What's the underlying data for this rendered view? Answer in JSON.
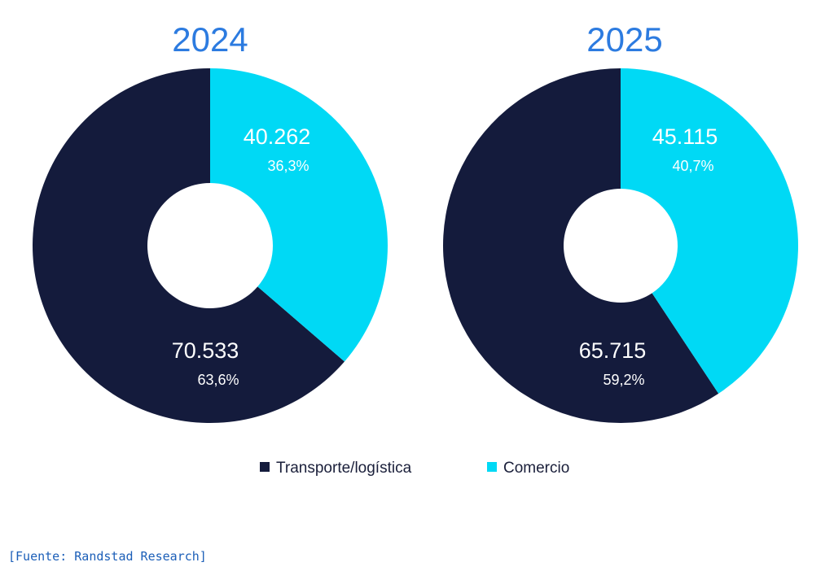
{
  "chart_data": [
    {
      "type": "pie",
      "variant": "donut",
      "title": "2024",
      "categories": [
        "Transporte/logística",
        "Comercio"
      ],
      "values": [
        70533,
        40262
      ],
      "value_labels": [
        "70.533",
        "40.262"
      ],
      "percent_labels": [
        "63,6%",
        "36,3%"
      ],
      "colors": [
        "#141b3c",
        "#00d9f5"
      ]
    },
    {
      "type": "pie",
      "variant": "donut",
      "title": "2025",
      "categories": [
        "Transporte/logística",
        "Comercio"
      ],
      "values": [
        65715,
        45115
      ],
      "value_labels": [
        "65.715",
        "45.115"
      ],
      "percent_labels": [
        "59,2%",
        "40,7%"
      ],
      "colors": [
        "#141b3c",
        "#00d9f5"
      ]
    }
  ],
  "legend": {
    "placement": "bottom-center",
    "items": [
      {
        "label": "Transporte/logística",
        "color": "#141b3c"
      },
      {
        "label": "Comercio",
        "color": "#00d9f5"
      }
    ]
  },
  "source": "[Fuente: Randstad Research]"
}
